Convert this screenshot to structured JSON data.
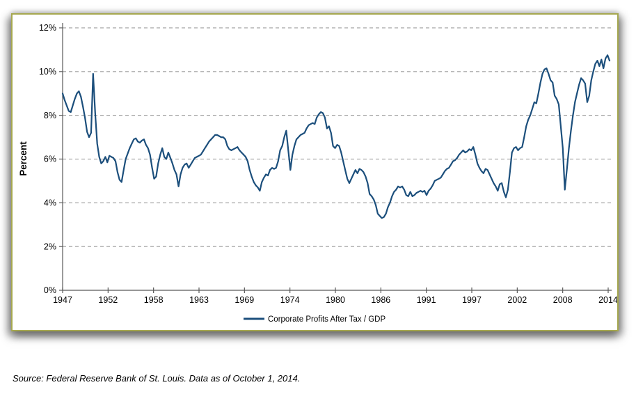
{
  "page": {
    "source_note": "Source: Federal Reserve Bank of St. Louis. Data as of October 1, 2014."
  },
  "chart_data": {
    "type": "line",
    "ylabel": "Percent",
    "xlabel": "",
    "ylim": [
      0,
      12
    ],
    "ytick_step": 2,
    "ytick_labels": [
      "0%",
      "2%",
      "4%",
      "6%",
      "8%",
      "10%",
      "12%"
    ],
    "xtick_labels": [
      "1947",
      "1952",
      "1958",
      "1963",
      "1969",
      "1974",
      "1980",
      "1986",
      "1991",
      "1997",
      "2002",
      "2008",
      "2014"
    ],
    "grid": "horizontal-dashed",
    "legend_position": "bottom-center",
    "gridline_color": "#8c8c8c",
    "axis_color": "#595959",
    "frame_border_color": "#a6a84f",
    "series": [
      {
        "name": "Corporate Profits After Tax / GDP",
        "color": "#1c4f7c",
        "start_year": 1947,
        "end_year": 2014,
        "frequency": "quarterly",
        "values": [
          9.0,
          8.7,
          8.45,
          8.2,
          8.15,
          8.45,
          8.75,
          9.0,
          9.1,
          8.85,
          8.4,
          7.9,
          7.25,
          7.0,
          7.2,
          9.9,
          8.1,
          6.7,
          6.1,
          5.8,
          5.9,
          6.1,
          5.85,
          6.15,
          6.1,
          6.05,
          5.9,
          5.4,
          5.05,
          4.95,
          5.5,
          6.0,
          6.25,
          6.5,
          6.7,
          6.9,
          6.95,
          6.8,
          6.75,
          6.85,
          6.9,
          6.65,
          6.5,
          6.2,
          5.6,
          5.1,
          5.2,
          5.8,
          6.2,
          6.5,
          6.1,
          6.0,
          6.3,
          6.05,
          5.8,
          5.5,
          5.3,
          4.75,
          5.3,
          5.6,
          5.75,
          5.8,
          5.6,
          5.75,
          5.9,
          6.05,
          6.1,
          6.15,
          6.2,
          6.35,
          6.5,
          6.65,
          6.8,
          6.9,
          7.0,
          7.1,
          7.1,
          7.05,
          7.0,
          7.0,
          6.9,
          6.6,
          6.45,
          6.4,
          6.45,
          6.5,
          6.55,
          6.4,
          6.3,
          6.2,
          6.1,
          5.9,
          5.5,
          5.2,
          4.95,
          4.8,
          4.7,
          4.55,
          4.95,
          5.15,
          5.3,
          5.25,
          5.5,
          5.6,
          5.55,
          5.6,
          5.9,
          6.4,
          6.6,
          7.0,
          7.3,
          6.4,
          5.5,
          6.2,
          6.6,
          6.9,
          7.0,
          7.1,
          7.15,
          7.2,
          7.4,
          7.55,
          7.6,
          7.65,
          7.6,
          7.9,
          8.05,
          8.15,
          8.1,
          7.9,
          7.4,
          7.5,
          7.2,
          6.6,
          6.5,
          6.65,
          6.6,
          6.3,
          5.9,
          5.5,
          5.1,
          4.9,
          5.1,
          5.3,
          5.5,
          5.35,
          5.55,
          5.5,
          5.4,
          5.2,
          4.9,
          4.4,
          4.3,
          4.15,
          3.9,
          3.5,
          3.4,
          3.3,
          3.35,
          3.5,
          3.8,
          4.0,
          4.3,
          4.5,
          4.6,
          4.75,
          4.7,
          4.75,
          4.6,
          4.35,
          4.3,
          4.5,
          4.3,
          4.35,
          4.45,
          4.5,
          4.55,
          4.5,
          4.55,
          4.35,
          4.55,
          4.65,
          4.8,
          5.0,
          5.05,
          5.1,
          5.15,
          5.3,
          5.45,
          5.55,
          5.6,
          5.75,
          5.9,
          5.95,
          6.05,
          6.2,
          6.3,
          6.4,
          6.3,
          6.35,
          6.45,
          6.4,
          6.55,
          6.2,
          5.8,
          5.6,
          5.45,
          5.35,
          5.55,
          5.5,
          5.3,
          5.1,
          4.9,
          4.75,
          4.55,
          4.85,
          4.9,
          4.5,
          4.25,
          4.6,
          5.4,
          6.3,
          6.5,
          6.55,
          6.4,
          6.5,
          6.55,
          7.0,
          7.5,
          7.8,
          8.0,
          8.3,
          8.6,
          8.55,
          9.0,
          9.5,
          9.9,
          10.1,
          10.15,
          9.9,
          9.6,
          9.5,
          8.9,
          8.75,
          8.5,
          7.5,
          6.5,
          4.6,
          5.5,
          6.5,
          7.3,
          8.0,
          8.6,
          9.0,
          9.4,
          9.7,
          9.6,
          9.45,
          8.6,
          8.9,
          9.6,
          10.0,
          10.35,
          10.5,
          10.25,
          10.55,
          10.15,
          10.6,
          10.75,
          10.5
        ]
      }
    ]
  }
}
